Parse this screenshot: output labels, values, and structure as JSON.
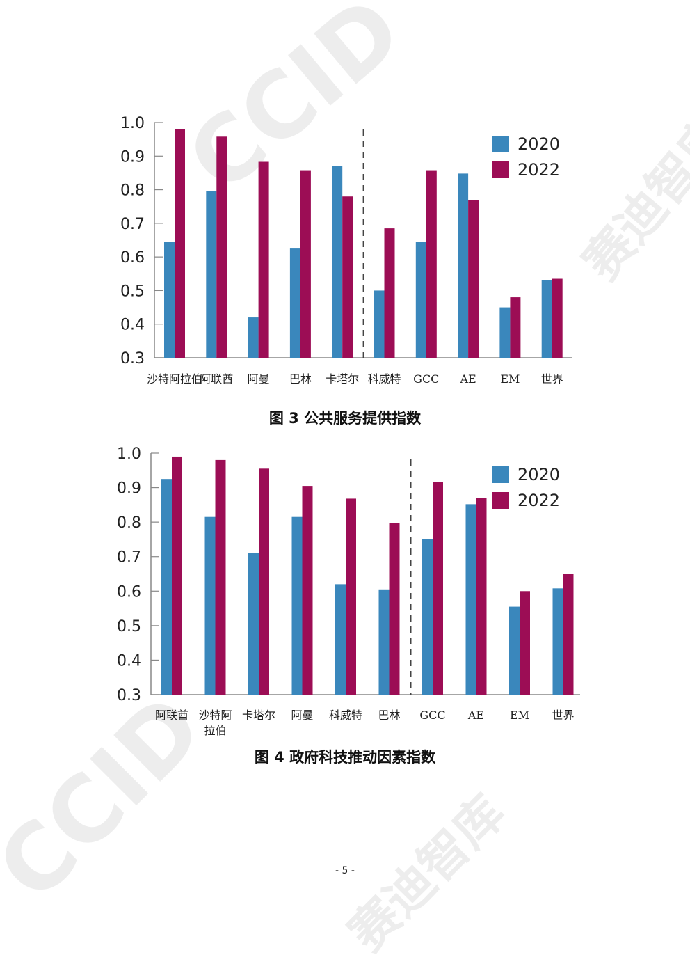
{
  "colors": {
    "series_2020": "#3a87bc",
    "series_2022": "#9c0d55",
    "axis": "#888888"
  },
  "watermark": {
    "logo_text": "CCID",
    "brand_text": "赛迪智库"
  },
  "chart_data": [
    {
      "type": "bar",
      "caption": "图 3  公共服务提供指数",
      "categories": [
        "沙特阿拉伯",
        "阿联酋",
        "阿曼",
        "巴林",
        "卡塔尔",
        "科威特",
        "GCC",
        "AE",
        "EM",
        "世界"
      ],
      "series": [
        {
          "name": "2020",
          "values": [
            0.645,
            0.795,
            0.42,
            0.625,
            0.87,
            0.5,
            0.645,
            0.848,
            0.45,
            0.53
          ]
        },
        {
          "name": "2022",
          "values": [
            0.98,
            0.958,
            0.883,
            0.858,
            0.78,
            0.685,
            0.858,
            0.77,
            0.48,
            0.535
          ]
        }
      ],
      "ylim": [
        0.3,
        1.0
      ],
      "yticks": [
        "0.3",
        "0.4",
        "0.5",
        "0.6",
        "0.7",
        "0.8",
        "0.9",
        "1.0"
      ],
      "divider_after_index": 4,
      "legend_position": "top-right",
      "grid": false
    },
    {
      "type": "bar",
      "caption": "图 4  政府科技推动因素指数",
      "categories": [
        "阿联酋",
        "沙特阿拉伯",
        "卡塔尔",
        "阿曼",
        "科威特",
        "巴林",
        "GCC",
        "AE",
        "EM",
        "世界"
      ],
      "series": [
        {
          "name": "2020",
          "values": [
            0.925,
            0.815,
            0.71,
            0.815,
            0.62,
            0.605,
            0.75,
            0.852,
            0.555,
            0.608
          ]
        },
        {
          "name": "2022",
          "values": [
            0.99,
            0.98,
            0.955,
            0.905,
            0.868,
            0.797,
            0.917,
            0.87,
            0.6,
            0.65
          ]
        }
      ],
      "ylim": [
        0.3,
        1.0
      ],
      "yticks": [
        "0.3",
        "0.4",
        "0.5",
        "0.6",
        "0.7",
        "0.8",
        "0.9",
        "1.0"
      ],
      "divider_after_index": 5,
      "legend_position": "top-right",
      "grid": false
    }
  ],
  "page_number": "- 5 -"
}
